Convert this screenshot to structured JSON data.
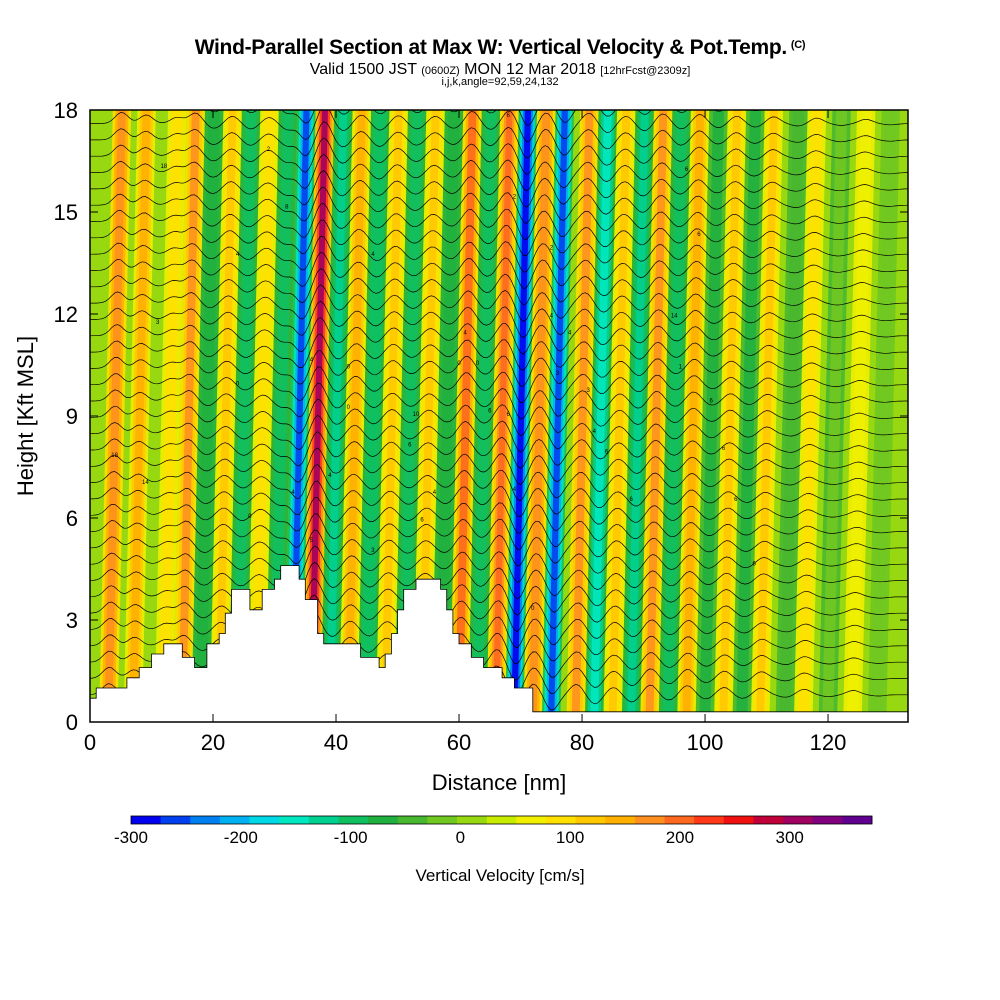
{
  "chart_data": {
    "type": "heatmap",
    "title": "Wind-Parallel Section at Max W: Vertical Velocity & Pot.Temp.",
    "title_units": "(C)",
    "subtitle_prefix": "Valid 1500 JST",
    "subtitle_utc": "(0600Z)",
    "subtitle_date": "MON 12 Mar 2018",
    "subtitle_fcst": "[12hrFcst@2309z]",
    "subline": "i,j,k,angle=92,59,24,132",
    "xlabel": "Distance [nm]",
    "ylabel": "Height [Kft MSL]",
    "xlim": [
      0,
      133
    ],
    "ylim": [
      0,
      18
    ],
    "xticks": [
      0,
      20,
      40,
      60,
      80,
      100,
      120
    ],
    "yticks": [
      0,
      3,
      6,
      9,
      12,
      15,
      18
    ],
    "colorbar": {
      "label": "Vertical Velocity [cm/s]",
      "range": [
        -300,
        375
      ],
      "ticks": [
        -300,
        -200,
        -100,
        0,
        100,
        200,
        300
      ],
      "colors": [
        "#0000f0",
        "#0040f0",
        "#0080f0",
        "#00b0f0",
        "#00d8e8",
        "#00e8c0",
        "#00d090",
        "#10c060",
        "#20b040",
        "#48b830",
        "#70c820",
        "#98d810",
        "#c8ec00",
        "#f0f000",
        "#ffe000",
        "#ffc800",
        "#ffb000",
        "#ff9020",
        "#ff6820",
        "#ff3818",
        "#f01010",
        "#c00038",
        "#a00060",
        "#800080",
        "#600090"
      ]
    },
    "terrain_nm_kft": [
      [
        0,
        0.7
      ],
      [
        1,
        0.7
      ],
      [
        1,
        1.0
      ],
      [
        6,
        1.0
      ],
      [
        6,
        1.3
      ],
      [
        8,
        1.3
      ],
      [
        8,
        1.6
      ],
      [
        10,
        1.6
      ],
      [
        10,
        2.0
      ],
      [
        12,
        2.0
      ],
      [
        12,
        2.3
      ],
      [
        15,
        2.3
      ],
      [
        15,
        1.9
      ],
      [
        17,
        1.9
      ],
      [
        17,
        1.6
      ],
      [
        19,
        1.6
      ],
      [
        19,
        2.3
      ],
      [
        21,
        2.3
      ],
      [
        21,
        2.6
      ],
      [
        22,
        2.6
      ],
      [
        22,
        3.2
      ],
      [
        23,
        3.2
      ],
      [
        23,
        3.9
      ],
      [
        26,
        3.9
      ],
      [
        26,
        3.3
      ],
      [
        28,
        3.3
      ],
      [
        28,
        3.9
      ],
      [
        30,
        3.9
      ],
      [
        30,
        4.2
      ],
      [
        31,
        4.2
      ],
      [
        31,
        4.6
      ],
      [
        34,
        4.6
      ],
      [
        34,
        4.2
      ],
      [
        35,
        4.2
      ],
      [
        35,
        3.6
      ],
      [
        37,
        3.6
      ],
      [
        37,
        2.6
      ],
      [
        38,
        2.6
      ],
      [
        38,
        2.3
      ],
      [
        44,
        2.3
      ],
      [
        44,
        1.9
      ],
      [
        47,
        1.9
      ],
      [
        47,
        1.6
      ],
      [
        48,
        1.6
      ],
      [
        48,
        2.0
      ],
      [
        49,
        2.0
      ],
      [
        49,
        2.6
      ],
      [
        50,
        2.6
      ],
      [
        50,
        3.3
      ],
      [
        51,
        3.3
      ],
      [
        51,
        3.9
      ],
      [
        53,
        3.9
      ],
      [
        53,
        4.2
      ],
      [
        57,
        4.2
      ],
      [
        57,
        3.9
      ],
      [
        58,
        3.9
      ],
      [
        58,
        3.3
      ],
      [
        59,
        3.3
      ],
      [
        59,
        2.6
      ],
      [
        60,
        2.6
      ],
      [
        60,
        2.3
      ],
      [
        62,
        2.3
      ],
      [
        62,
        1.9
      ],
      [
        64,
        1.9
      ],
      [
        64,
        1.6
      ],
      [
        67,
        1.6
      ],
      [
        67,
        1.3
      ],
      [
        69,
        1.3
      ],
      [
        69,
        1.0
      ],
      [
        72,
        1.0
      ],
      [
        72,
        0.3
      ],
      [
        133,
        0.3
      ]
    ],
    "vertical_velocity_bands": [
      {
        "x": 3,
        "w": 180
      },
      {
        "x": 7,
        "w": 140
      },
      {
        "x": 12,
        "w": 100
      },
      {
        "x": 15,
        "w": 170
      },
      {
        "x": 18,
        "w": -80
      },
      {
        "x": 21,
        "w": 120
      },
      {
        "x": 24,
        "w": -90
      },
      {
        "x": 27,
        "w": 100
      },
      {
        "x": 30,
        "w": -100
      },
      {
        "x": 33,
        "w": -260
      },
      {
        "x": 36,
        "w": 300
      },
      {
        "x": 39,
        "w": -120
      },
      {
        "x": 42,
        "w": 140
      },
      {
        "x": 45,
        "w": -110
      },
      {
        "x": 48,
        "w": 130
      },
      {
        "x": 51,
        "w": -90
      },
      {
        "x": 54,
        "w": 120
      },
      {
        "x": 57,
        "w": -80
      },
      {
        "x": 60,
        "w": 200
      },
      {
        "x": 63,
        "w": -100
      },
      {
        "x": 66,
        "w": 210
      },
      {
        "x": 69,
        "w": -300
      },
      {
        "x": 72,
        "w": 180
      },
      {
        "x": 75,
        "w": -250
      },
      {
        "x": 79,
        "w": 170
      },
      {
        "x": 82,
        "w": -150
      },
      {
        "x": 85,
        "w": 120
      },
      {
        "x": 88,
        "w": -120
      },
      {
        "x": 91,
        "w": 160
      },
      {
        "x": 94,
        "w": -90
      },
      {
        "x": 97,
        "w": 150
      },
      {
        "x": 100,
        "w": -70
      },
      {
        "x": 103,
        "w": 120
      },
      {
        "x": 106,
        "w": -60
      },
      {
        "x": 109,
        "w": 110
      },
      {
        "x": 113,
        "w": -40
      },
      {
        "x": 116,
        "w": 90
      },
      {
        "x": 120,
        "w": -30
      },
      {
        "x": 124,
        "w": 70
      },
      {
        "x": 128,
        "w": -20
      }
    ],
    "contour_labels": [
      {
        "x": 12,
        "y": 16.3,
        "text": "18"
      },
      {
        "x": 29,
        "y": 16.8,
        "text": "2"
      },
      {
        "x": 32,
        "y": 15.1,
        "text": "8"
      },
      {
        "x": 24,
        "y": 13.7,
        "text": "4"
      },
      {
        "x": 46,
        "y": 13.7,
        "text": "4"
      },
      {
        "x": 11,
        "y": 11.7,
        "text": "3"
      },
      {
        "x": 36,
        "y": 10.6,
        "text": "4"
      },
      {
        "x": 42,
        "y": 10.4,
        "text": "0"
      },
      {
        "x": 24,
        "y": 9.9,
        "text": "0"
      },
      {
        "x": 42,
        "y": 9.2,
        "text": "0"
      },
      {
        "x": 4,
        "y": 7.8,
        "text": "18"
      },
      {
        "x": 9,
        "y": 7.0,
        "text": "14"
      },
      {
        "x": 68,
        "y": 17.8,
        "text": "6"
      },
      {
        "x": 69,
        "y": 15.4,
        "text": "2"
      },
      {
        "x": 75,
        "y": 13.9,
        "text": "2"
      },
      {
        "x": 75,
        "y": 11.9,
        "text": "4"
      },
      {
        "x": 78,
        "y": 11.4,
        "text": "4"
      },
      {
        "x": 61,
        "y": 11.4,
        "text": "4"
      },
      {
        "x": 60,
        "y": 10.5,
        "text": "0"
      },
      {
        "x": 63,
        "y": 10.5,
        "text": "0"
      },
      {
        "x": 76,
        "y": 10.2,
        "text": "3"
      },
      {
        "x": 81,
        "y": 9.7,
        "text": "3"
      },
      {
        "x": 65,
        "y": 9.1,
        "text": "6"
      },
      {
        "x": 68,
        "y": 9.0,
        "text": "6"
      },
      {
        "x": 82,
        "y": 8.5,
        "text": "4"
      },
      {
        "x": 84,
        "y": 7.9,
        "text": "6"
      },
      {
        "x": 53,
        "y": 9.0,
        "text": "10"
      },
      {
        "x": 52,
        "y": 8.1,
        "text": "6"
      },
      {
        "x": 56,
        "y": 6.7,
        "text": "4"
      },
      {
        "x": 39,
        "y": 7.2,
        "text": "4"
      },
      {
        "x": 33,
        "y": 6.7,
        "text": "4"
      },
      {
        "x": 36,
        "y": 5.3,
        "text": "5"
      },
      {
        "x": 26,
        "y": 6.0,
        "text": "0"
      },
      {
        "x": 46,
        "y": 5.0,
        "text": "3"
      },
      {
        "x": 54,
        "y": 5.9,
        "text": "6"
      },
      {
        "x": 69,
        "y": 6.8,
        "text": "4"
      },
      {
        "x": 88,
        "y": 6.5,
        "text": "6"
      },
      {
        "x": 97,
        "y": 16.2,
        "text": "6"
      },
      {
        "x": 99,
        "y": 14.3,
        "text": "6"
      },
      {
        "x": 95,
        "y": 11.9,
        "text": "14"
      },
      {
        "x": 96,
        "y": 10.4,
        "text": "1"
      },
      {
        "x": 101,
        "y": 9.4,
        "text": "6"
      },
      {
        "x": 103,
        "y": 8.0,
        "text": "6"
      },
      {
        "x": 105,
        "y": 6.5,
        "text": "6"
      },
      {
        "x": 108,
        "y": 4.6,
        "text": "6"
      },
      {
        "x": 72,
        "y": 3.3,
        "text": "0"
      }
    ]
  }
}
